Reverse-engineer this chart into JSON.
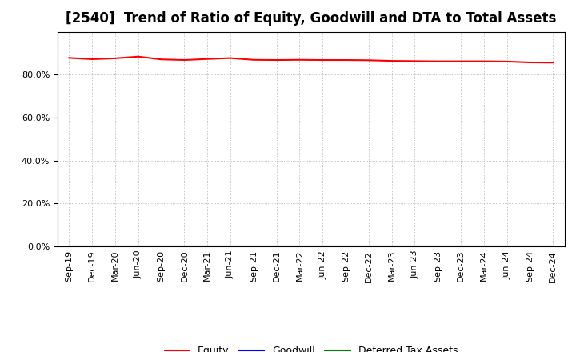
{
  "title": "[2540]  Trend of Ratio of Equity, Goodwill and DTA to Total Assets",
  "x_labels": [
    "Sep-19",
    "Dec-19",
    "Mar-20",
    "Jun-20",
    "Sep-20",
    "Dec-20",
    "Mar-21",
    "Jun-21",
    "Sep-21",
    "Dec-21",
    "Mar-22",
    "Jun-22",
    "Sep-22",
    "Dec-22",
    "Mar-23",
    "Jun-23",
    "Sep-23",
    "Dec-23",
    "Mar-24",
    "Jun-24",
    "Sep-24",
    "Dec-24"
  ],
  "equity": [
    0.878,
    0.872,
    0.876,
    0.884,
    0.871,
    0.868,
    0.873,
    0.877,
    0.869,
    0.868,
    0.869,
    0.868,
    0.868,
    0.867,
    0.864,
    0.863,
    0.862,
    0.862,
    0.862,
    0.861,
    0.857,
    0.856
  ],
  "goodwill": [
    0.0,
    0.0,
    0.0,
    0.0,
    0.0,
    0.0,
    0.0,
    0.0,
    0.0,
    0.0,
    0.0,
    0.0,
    0.0,
    0.0,
    0.0,
    0.0,
    0.0,
    0.0,
    0.0,
    0.0,
    0.0,
    0.0
  ],
  "dta": [
    0.0,
    0.0,
    0.0,
    0.0,
    0.0,
    0.0,
    0.0,
    0.0,
    0.0,
    0.0,
    0.0,
    0.0,
    0.0,
    0.0,
    0.0,
    0.0,
    0.0,
    0.0,
    0.0,
    0.0,
    0.0,
    0.0
  ],
  "equity_color": "#FF0000",
  "goodwill_color": "#0000FF",
  "dta_color": "#008000",
  "ylim": [
    0.0,
    1.0
  ],
  "yticks": [
    0.0,
    0.2,
    0.4,
    0.6,
    0.8
  ],
  "background_color": "#FFFFFF",
  "grid_color": "#AAAAAA",
  "title_fontsize": 12,
  "legend_fontsize": 9,
  "tick_fontsize": 8
}
